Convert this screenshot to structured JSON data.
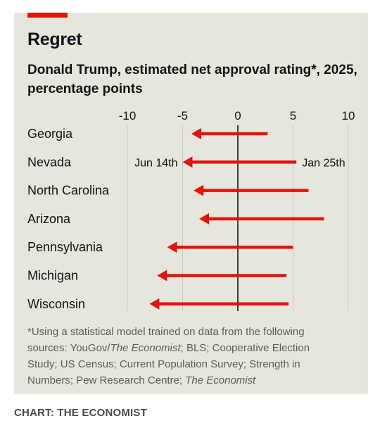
{
  "header": {
    "title": "Regret",
    "subtitle": "Donald Trump, estimated net approval rating*, 2025, percentage points"
  },
  "chart_data": {
    "type": "arrow",
    "title": "Regret",
    "subtitle": "Donald Trump, estimated net approval rating*, 2025, percentage points",
    "xlim": [
      -10,
      10
    ],
    "xticks": [
      "-10",
      "-5",
      "0",
      "5",
      "10"
    ],
    "xtick_values": [
      -10,
      -5,
      0,
      5,
      10
    ],
    "grid": true,
    "start_label": "Jan 25th",
    "end_label": "Jun 14th",
    "label_row": "Nevada",
    "series": [
      {
        "state": "Georgia",
        "start": 2.7,
        "end": -4.2
      },
      {
        "state": "Nevada",
        "start": 5.3,
        "end": -5.0
      },
      {
        "state": "North Carolina",
        "start": 6.4,
        "end": -4.0
      },
      {
        "state": "Arizona",
        "start": 7.8,
        "end": -3.5
      },
      {
        "state": "Pennsylvania",
        "start": 5.0,
        "end": -6.4
      },
      {
        "state": "Michigan",
        "start": 4.4,
        "end": -7.3
      },
      {
        "state": "Wisconsin",
        "start": 4.6,
        "end": -8.0
      }
    ],
    "arrow_color": "#e3120b"
  },
  "footnote": {
    "text_plain1": "*Using a statistical model trained on data from the following sources: YouGov/",
    "italic1": "The Economist",
    "text_plain2": "; BLS; Cooperative Election Study; US Census; Current Population Survey; Strength in Numbers; Pew Research Centre; ",
    "italic2": "The Economist"
  },
  "source": "CHART: THE ECONOMIST",
  "colors": {
    "background": "#e7e6dd",
    "accent": "#e3120b",
    "text": "#121212",
    "grid": "#c9c8be"
  }
}
